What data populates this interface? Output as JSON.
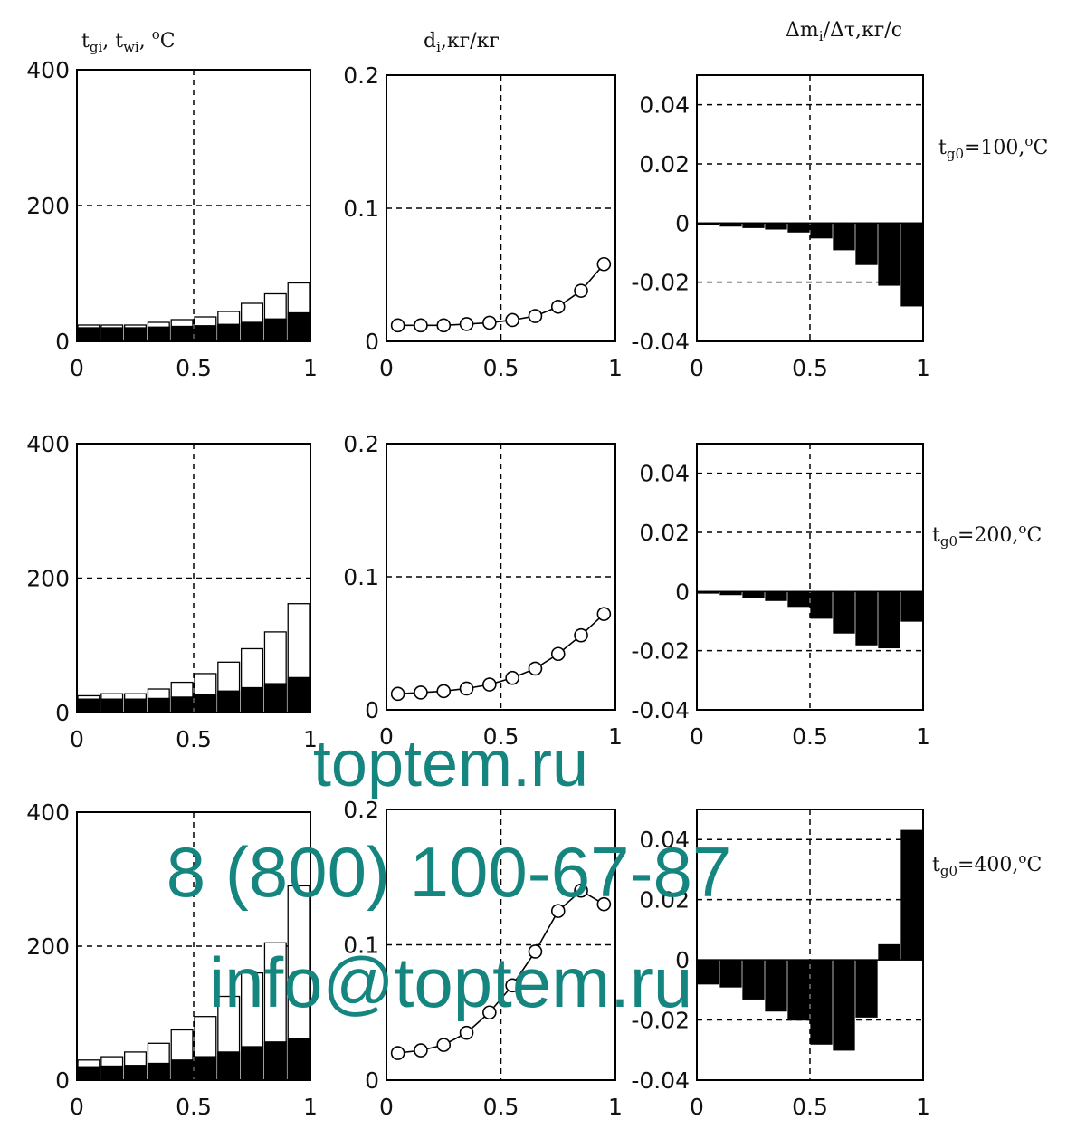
{
  "column_titles": [
    "t_gi, t_wi, °C",
    "d_i,кг/кг",
    "Δm_i/Δτ,кг/с"
  ],
  "row_labels": [
    "t_g0=100,°C",
    "t_g0=200,°C",
    "t_g0=400,°C"
  ],
  "watermark": {
    "line1": "toptem.ru",
    "line2": "8 (800) 100-67-87",
    "line3": "info@toptem.ru",
    "color": "#15857f"
  },
  "chart_data": [
    {
      "id": "temp-100",
      "type": "bar",
      "row": 0,
      "col": 0,
      "xlim": [
        0,
        1
      ],
      "ylim": [
        0,
        400
      ],
      "xticks": [
        "0",
        "0.5",
        "1"
      ],
      "yticks": [
        "0",
        "200",
        "400"
      ],
      "grid": true,
      "x": [
        0.05,
        0.15,
        0.25,
        0.35,
        0.45,
        0.55,
        0.65,
        0.75,
        0.85,
        0.95
      ],
      "series": [
        {
          "values": [
            24,
            24,
            24,
            28,
            32,
            36,
            44,
            56,
            70,
            86
          ],
          "fill": "#ffffff"
        },
        {
          "values": [
            20,
            20,
            20,
            21,
            22,
            23,
            25,
            28,
            33,
            42
          ],
          "fill": "#000000"
        }
      ]
    },
    {
      "id": "moist-100",
      "type": "line",
      "row": 0,
      "col": 1,
      "xlim": [
        0,
        1
      ],
      "ylim": [
        0,
        0.2
      ],
      "xticks": [
        "0",
        "0.5",
        "1"
      ],
      "yticks": [
        "0",
        "0.1",
        "0.2"
      ],
      "grid": true,
      "x": [
        0.05,
        0.15,
        0.25,
        0.35,
        0.45,
        0.55,
        0.65,
        0.75,
        0.85,
        0.95
      ],
      "series": [
        {
          "values": [
            0.012,
            0.012,
            0.012,
            0.013,
            0.014,
            0.016,
            0.019,
            0.026,
            0.038,
            0.058
          ],
          "marker": "circle"
        }
      ]
    },
    {
      "id": "mass-100",
      "type": "bar",
      "row": 0,
      "col": 2,
      "xlim": [
        0,
        1
      ],
      "ylim": [
        -0.04,
        0.05
      ],
      "xticks": [
        "0",
        "0.5",
        "1"
      ],
      "yticks": [
        "-0.04",
        "-0.02",
        "0",
        "0.02",
        "0.04"
      ],
      "grid": true,
      "x": [
        0.05,
        0.15,
        0.25,
        0.35,
        0.45,
        0.55,
        0.65,
        0.75,
        0.85,
        0.95
      ],
      "series": [
        {
          "values": [
            -0.0005,
            -0.001,
            -0.0015,
            -0.002,
            -0.003,
            -0.005,
            -0.009,
            -0.014,
            -0.021,
            -0.028
          ],
          "fill": "#000000"
        }
      ]
    },
    {
      "id": "temp-200",
      "type": "bar",
      "row": 1,
      "col": 0,
      "xlim": [
        0,
        1
      ],
      "ylim": [
        0,
        400
      ],
      "xticks": [
        "0",
        "0.5",
        "1"
      ],
      "yticks": [
        "0",
        "200",
        "400"
      ],
      "grid": true,
      "x": [
        0.05,
        0.15,
        0.25,
        0.35,
        0.45,
        0.55,
        0.65,
        0.75,
        0.85,
        0.95
      ],
      "series": [
        {
          "values": [
            25,
            28,
            28,
            35,
            45,
            58,
            75,
            95,
            120,
            162
          ],
          "fill": "#ffffff"
        },
        {
          "values": [
            20,
            20,
            20,
            21,
            23,
            27,
            32,
            37,
            43,
            52
          ],
          "fill": "#000000"
        }
      ]
    },
    {
      "id": "moist-200",
      "type": "line",
      "row": 1,
      "col": 1,
      "xlim": [
        0,
        1
      ],
      "ylim": [
        0,
        0.2
      ],
      "xticks": [
        "0",
        "0.5",
        "1"
      ],
      "yticks": [
        "0",
        "0.1",
        "0.2"
      ],
      "grid": true,
      "x": [
        0.05,
        0.15,
        0.25,
        0.35,
        0.45,
        0.55,
        0.65,
        0.75,
        0.85,
        0.95
      ],
      "series": [
        {
          "values": [
            0.012,
            0.013,
            0.014,
            0.016,
            0.019,
            0.024,
            0.031,
            0.042,
            0.056,
            0.072
          ],
          "marker": "circle"
        }
      ]
    },
    {
      "id": "mass-200",
      "type": "bar",
      "row": 1,
      "col": 2,
      "xlim": [
        0,
        1
      ],
      "ylim": [
        -0.04,
        0.05
      ],
      "xticks": [
        "0",
        "0.5",
        "1"
      ],
      "yticks": [
        "-0.04",
        "-0.02",
        "0",
        "0.02",
        "0.04"
      ],
      "grid": true,
      "x": [
        0.05,
        0.15,
        0.25,
        0.35,
        0.45,
        0.55,
        0.65,
        0.75,
        0.85,
        0.95
      ],
      "series": [
        {
          "values": [
            -0.0005,
            -0.001,
            -0.002,
            -0.003,
            -0.005,
            -0.009,
            -0.014,
            -0.018,
            -0.019,
            -0.01
          ],
          "fill": "#000000"
        }
      ]
    },
    {
      "id": "temp-400",
      "type": "bar",
      "row": 2,
      "col": 0,
      "xlim": [
        0,
        1
      ],
      "ylim": [
        0,
        400
      ],
      "xticks": [
        "0",
        "0.5",
        "1"
      ],
      "yticks": [
        "0",
        "200",
        "400"
      ],
      "grid": true,
      "x": [
        0.05,
        0.15,
        0.25,
        0.35,
        0.45,
        0.55,
        0.65,
        0.75,
        0.85,
        0.95
      ],
      "series": [
        {
          "values": [
            30,
            35,
            42,
            55,
            75,
            95,
            125,
            160,
            205,
            290
          ],
          "fill": "#ffffff"
        },
        {
          "values": [
            20,
            21,
            22,
            25,
            30,
            35,
            42,
            50,
            57,
            62
          ],
          "fill": "#000000"
        }
      ]
    },
    {
      "id": "moist-400",
      "type": "line",
      "row": 2,
      "col": 1,
      "xlim": [
        0,
        1
      ],
      "ylim": [
        0,
        0.2
      ],
      "xticks": [
        "0",
        "0.5",
        "1"
      ],
      "yticks": [
        "0",
        "0.1",
        "0.2"
      ],
      "grid": true,
      "x": [
        0.05,
        0.15,
        0.25,
        0.35,
        0.45,
        0.55,
        0.65,
        0.75,
        0.85,
        0.95
      ],
      "series": [
        {
          "values": [
            0.02,
            0.022,
            0.026,
            0.035,
            0.05,
            0.07,
            0.095,
            0.125,
            0.14,
            0.13
          ],
          "marker": "circle"
        }
      ]
    },
    {
      "id": "mass-400",
      "type": "bar",
      "row": 2,
      "col": 2,
      "xlim": [
        0,
        1
      ],
      "ylim": [
        -0.04,
        0.05
      ],
      "xticks": [
        "0",
        "0.5",
        "1"
      ],
      "yticks": [
        "-0.04",
        "-0.02",
        "0",
        "0.02",
        "0.04"
      ],
      "grid": true,
      "x": [
        0.05,
        0.15,
        0.25,
        0.35,
        0.45,
        0.55,
        0.65,
        0.75,
        0.85,
        0.95
      ],
      "series": [
        {
          "values": [
            -0.008,
            -0.009,
            -0.013,
            -0.017,
            -0.02,
            -0.028,
            -0.03,
            -0.019,
            0.005,
            0.043
          ],
          "fill": "#000000"
        }
      ]
    }
  ]
}
